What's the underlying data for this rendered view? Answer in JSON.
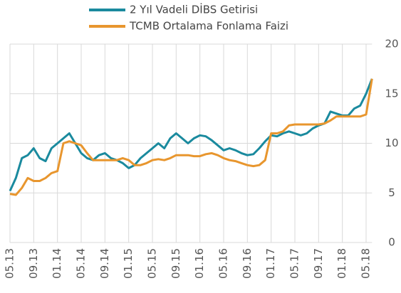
{
  "chart_data": {
    "type": "line",
    "categories": [
      "05.13",
      null,
      null,
      null,
      "09.13",
      null,
      null,
      null,
      "01.14",
      null,
      null,
      null,
      "05.14",
      null,
      null,
      null,
      "09.14",
      null,
      null,
      null,
      "01.15",
      null,
      null,
      null,
      "05.15",
      null,
      null,
      null,
      "09.15",
      null,
      null,
      null,
      "01.16",
      null,
      null,
      null,
      "05.16",
      null,
      null,
      null,
      "09.16",
      null,
      null,
      null,
      "01.17",
      null,
      null,
      null,
      "05.17",
      null,
      null,
      null,
      "09.17",
      null,
      null,
      null,
      "01.18",
      null,
      null,
      null,
      "05.18",
      null
    ],
    "series": [
      {
        "name": "2 Yıl Vadeli DİBS Getirisi",
        "color": "#1a8a9e",
        "values": [
          5.2,
          6.5,
          8.5,
          8.8,
          9.5,
          8.5,
          8.2,
          9.5,
          10.0,
          10.5,
          11.0,
          10.0,
          9.0,
          8.5,
          8.3,
          8.8,
          9.0,
          8.5,
          8.3,
          8.0,
          7.5,
          7.8,
          8.5,
          9.0,
          9.5,
          10.0,
          9.5,
          10.5,
          11.0,
          10.5,
          10.0,
          10.5,
          10.8,
          10.7,
          10.3,
          9.8,
          9.3,
          9.5,
          9.3,
          9.0,
          8.8,
          8.9,
          9.5,
          10.2,
          10.8,
          10.7,
          11.0,
          11.2,
          11.0,
          10.8,
          11.0,
          11.5,
          11.8,
          12.0,
          13.2,
          13.0,
          12.8,
          12.8,
          13.5,
          13.8,
          15.0,
          16.5
        ]
      },
      {
        "name": "TCMB Ortalama Fonlama Faizi",
        "color": "#e8962e",
        "values": [
          4.9,
          4.8,
          5.5,
          6.5,
          6.2,
          6.2,
          6.5,
          7.0,
          7.2,
          10.0,
          10.2,
          10.0,
          9.8,
          9.0,
          8.3,
          8.3,
          8.3,
          8.3,
          8.3,
          8.5,
          8.3,
          7.8,
          7.8,
          8.0,
          8.3,
          8.4,
          8.3,
          8.5,
          8.8,
          8.8,
          8.8,
          8.7,
          8.7,
          8.9,
          9.0,
          8.8,
          8.5,
          8.3,
          8.2,
          8.0,
          7.8,
          7.7,
          7.8,
          8.3,
          11.0,
          11.0,
          11.2,
          11.8,
          11.9,
          11.9,
          11.9,
          11.9,
          11.9,
          12.0,
          12.3,
          12.7,
          12.7,
          12.7,
          12.7,
          12.7,
          12.9,
          16.5
        ]
      }
    ],
    "ylim": [
      0,
      20
    ],
    "yticks": [
      0,
      5,
      10,
      15,
      20
    ],
    "grid": true
  }
}
